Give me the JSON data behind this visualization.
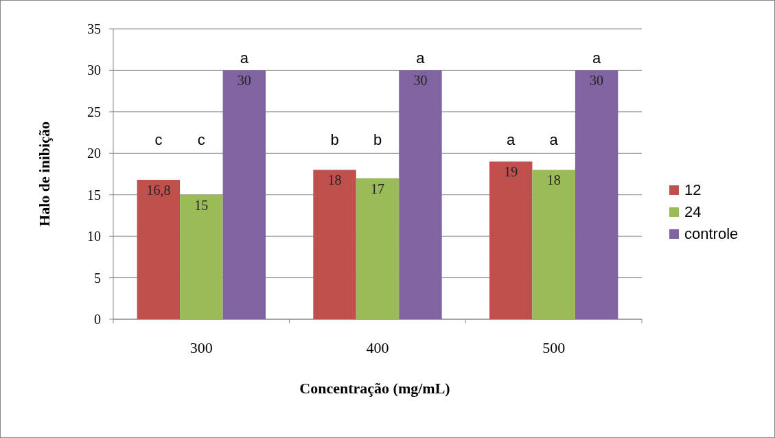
{
  "chart_data": {
    "type": "bar",
    "xlabel": "Concentração (mg/mL)",
    "ylabel": "Halo de inibição",
    "categories": [
      "300",
      "400",
      "500"
    ],
    "series": [
      {
        "name": "12",
        "color": "#c0504d",
        "values": [
          16.8,
          18,
          19
        ],
        "value_labels": [
          "16,8",
          "18",
          "19"
        ]
      },
      {
        "name": "24",
        "color": "#9bbb59",
        "values": [
          15,
          17,
          18
        ],
        "value_labels": [
          "15",
          "17",
          "18"
        ]
      },
      {
        "name": "controle",
        "color": "#8064a2",
        "values": [
          30,
          30,
          30
        ],
        "value_labels": [
          "30",
          "30",
          "30"
        ]
      }
    ],
    "annotations": [
      "c",
      "c",
      "a",
      "b",
      "b",
      "a",
      "a",
      "a",
      "a"
    ],
    "ylim": [
      0,
      35
    ],
    "yticks": [
      0,
      5,
      10,
      15,
      20,
      25,
      30,
      35
    ],
    "grid": "y",
    "legend": "right"
  }
}
